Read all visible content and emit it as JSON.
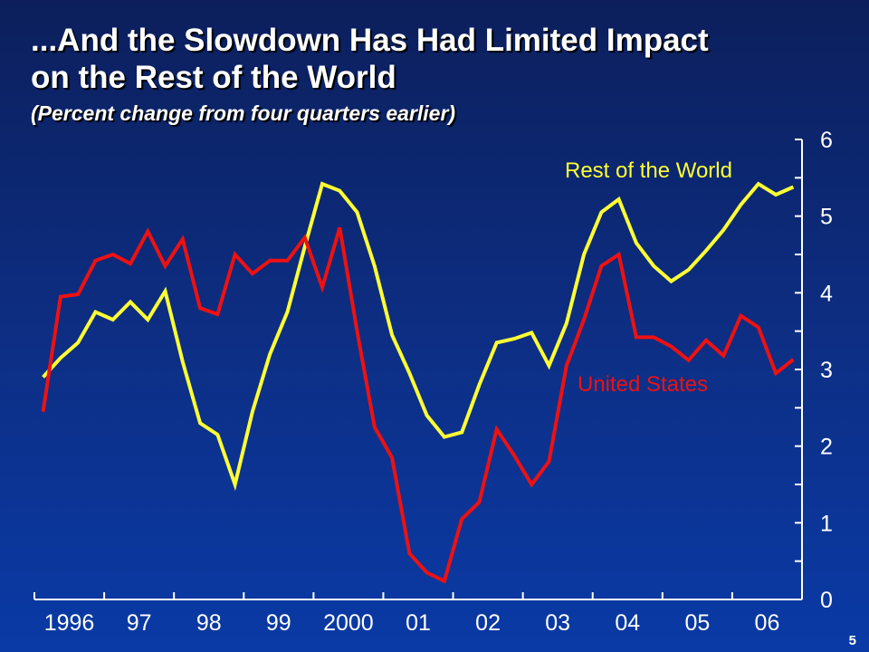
{
  "slide": {
    "title_line1": "...And the Slowdown Has Had Limited Impact",
    "title_line2": "on the Rest of the World",
    "subtitle": "(Percent change from four quarters earlier)",
    "page_number": "5"
  },
  "colors": {
    "rest_of_world": "#ffff33",
    "united_states": "#ee1111",
    "axis": "#ffffff"
  },
  "chart_data": {
    "type": "line",
    "ylim": [
      0,
      6
    ],
    "y_ticks": [
      "0",
      "1",
      "2",
      "3",
      "4",
      "5",
      "6"
    ],
    "x_tick_labels": [
      "1996",
      "97",
      "98",
      "99",
      "2000",
      "01",
      "02",
      "03",
      "04",
      "05",
      "06"
    ],
    "x_start_year": 1996,
    "grid": false,
    "y_axis_position": "right",
    "series": [
      {
        "name": "Rest of the World",
        "values": [
          2.9,
          3.15,
          3.35,
          3.75,
          3.65,
          3.88,
          3.65,
          4.02,
          3.1,
          2.3,
          2.15,
          1.5,
          2.45,
          3.2,
          3.75,
          4.6,
          5.42,
          5.33,
          5.05,
          4.35,
          3.45,
          2.95,
          2.4,
          2.12,
          2.18,
          2.8,
          3.35,
          3.4,
          3.48,
          3.05,
          3.6,
          4.5,
          5.05,
          5.22,
          4.65,
          4.35,
          4.15,
          4.3,
          4.55,
          4.82,
          5.15,
          5.42,
          5.28,
          5.38
        ]
      },
      {
        "name": "United States",
        "values": [
          2.45,
          3.95,
          3.98,
          4.42,
          4.5,
          4.38,
          4.8,
          4.35,
          4.7,
          3.8,
          3.72,
          4.5,
          4.25,
          4.42,
          4.42,
          4.72,
          4.07,
          4.85,
          3.5,
          2.25,
          1.85,
          0.6,
          0.35,
          0.24,
          1.05,
          1.27,
          2.22,
          1.88,
          1.5,
          1.8,
          3.05,
          3.65,
          4.35,
          4.5,
          3.42,
          3.42,
          3.3,
          3.12,
          3.38,
          3.18,
          3.7,
          3.55,
          2.95,
          3.13
        ]
      }
    ]
  }
}
